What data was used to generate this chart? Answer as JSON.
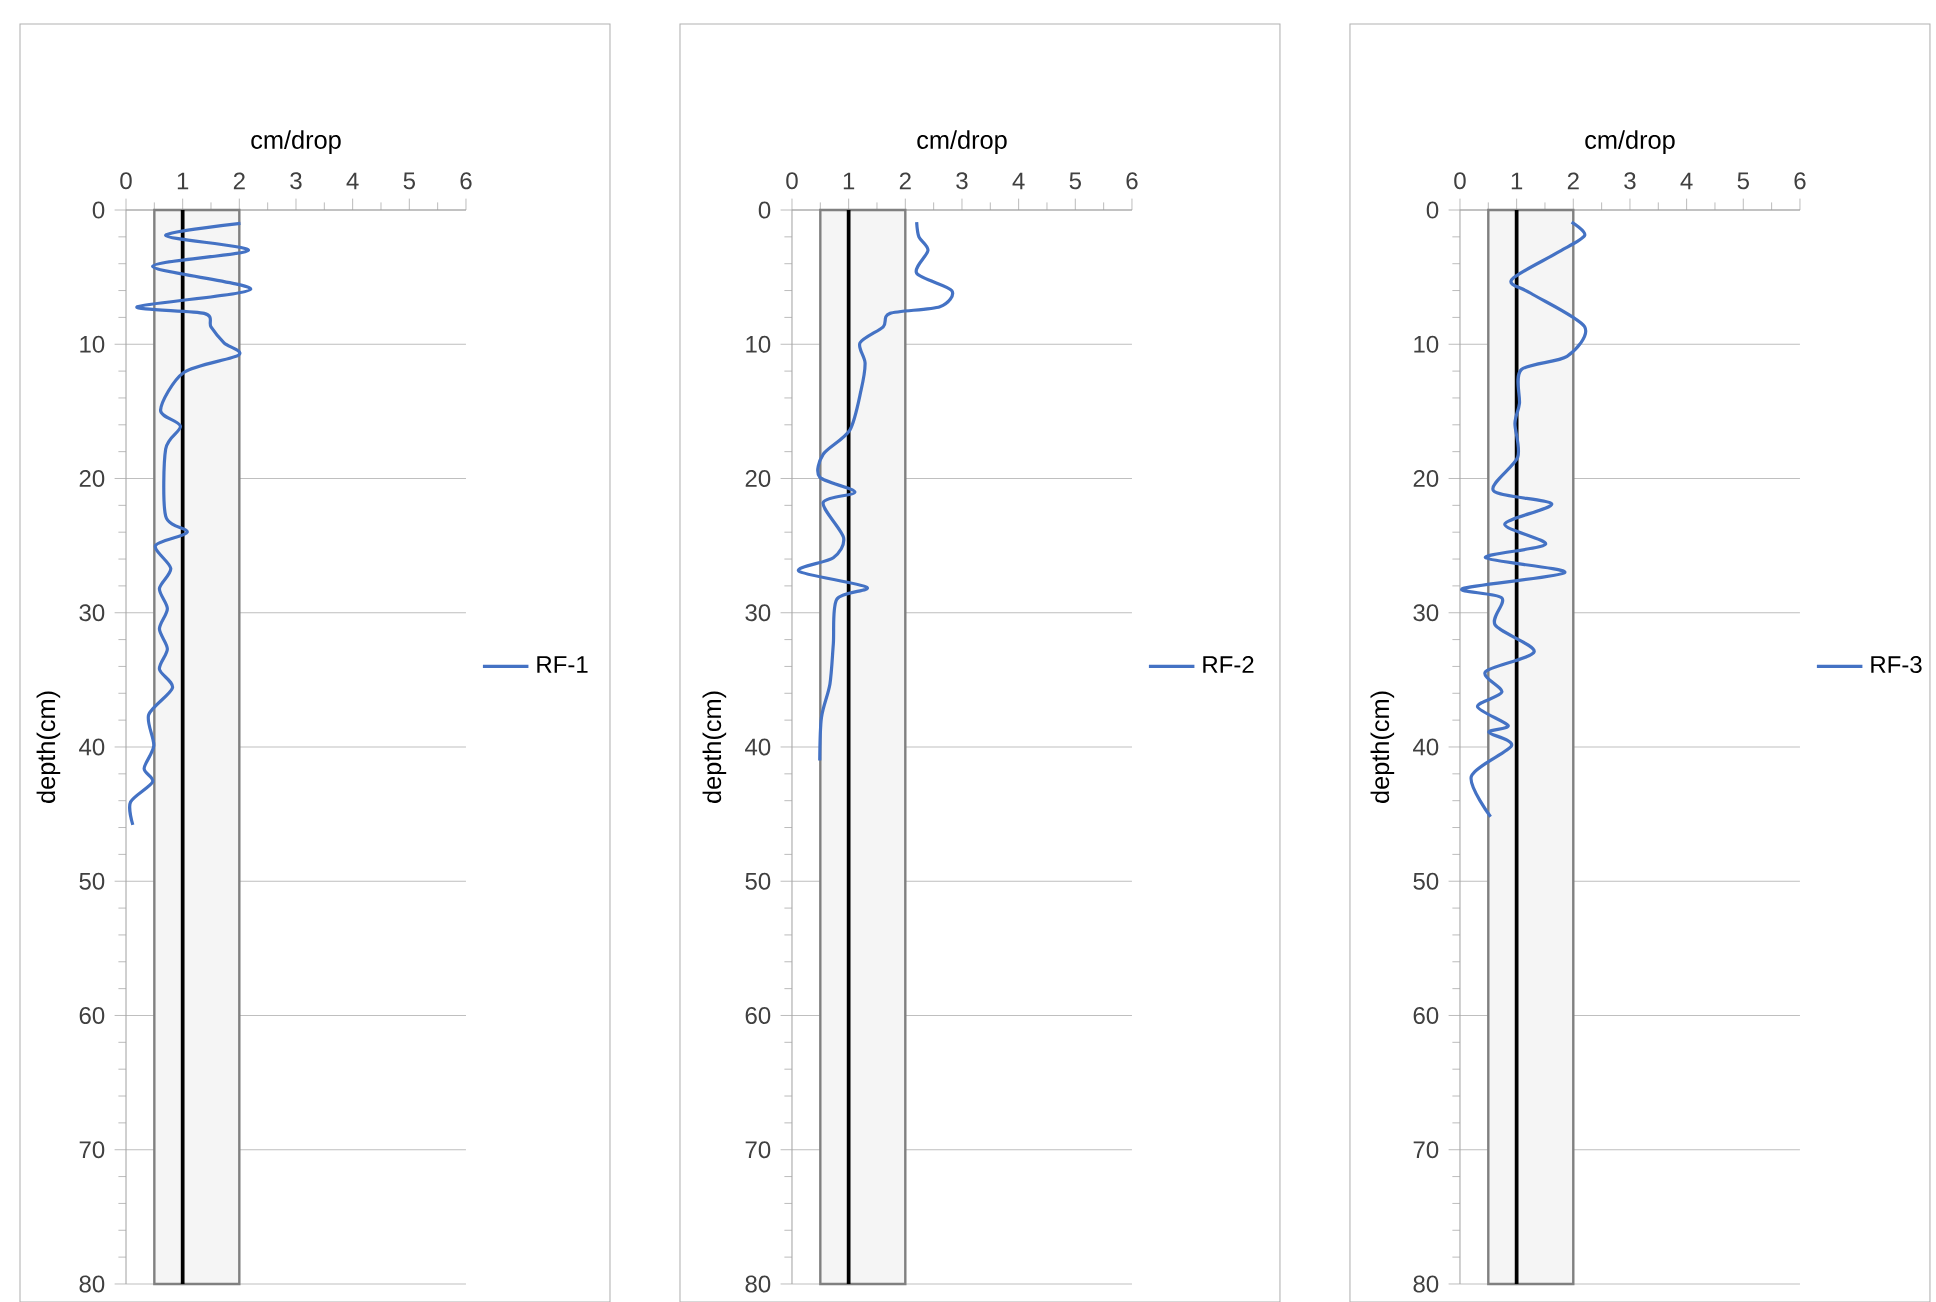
{
  "chart_data": [
    {
      "type": "line",
      "xlabel": "cm/drop",
      "ylabel": "depth(cm)",
      "xlim": [
        0,
        6
      ],
      "xticks": [
        0,
        1,
        2,
        3,
        4,
        5,
        6
      ],
      "ylim": [
        80,
        0
      ],
      "yticks": [
        0,
        10,
        20,
        30,
        40,
        50,
        60,
        70,
        80
      ],
      "grid": "y",
      "legend": "right",
      "bands": [
        {
          "axis": "x",
          "from": 0.5,
          "to": 2,
          "color": "#808080"
        }
      ],
      "ref_lines": [
        {
          "axis": "x",
          "value": 1,
          "color": "#000000"
        }
      ],
      "series": [
        {
          "name": "RF-1",
          "color": "#4472c4",
          "x": [
            2.02,
            0.7,
            2.16,
            0.47,
            2.2,
            0.2,
            1.38,
            1.5,
            1.73,
            1.99,
            1.02,
            0.61,
            0.96,
            0.7,
            0.7,
            1.08,
            0.52,
            0.79,
            0.59,
            0.73,
            0.59,
            0.73,
            0.59,
            0.82,
            0.4,
            0.49,
            0.32,
            0.47,
            0.08,
            0.12
          ],
          "values": [
            1,
            1.9,
            3,
            4.2,
            5.9,
            7.2,
            7.7,
            8.7,
            9.9,
            10.8,
            12.1,
            14.9,
            16.1,
            17.8,
            22.8,
            24,
            25,
            26.7,
            28.2,
            29.7,
            31.2,
            32.7,
            34.2,
            35.6,
            37.6,
            39.9,
            41.6,
            42.6,
            44.1,
            45.8
          ]
        }
      ]
    },
    {
      "type": "line",
      "xlabel": "cm/drop",
      "ylabel": "depth(cm)",
      "xlim": [
        0,
        6
      ],
      "xticks": [
        0,
        1,
        2,
        3,
        4,
        5,
        6
      ],
      "ylim": [
        80,
        0
      ],
      "yticks": [
        0,
        10,
        20,
        30,
        40,
        50,
        60,
        70,
        80
      ],
      "grid": "y",
      "legend": "right",
      "bands": [
        {
          "axis": "x",
          "from": 0.5,
          "to": 2,
          "color": "#808080"
        }
      ],
      "ref_lines": [
        {
          "axis": "x",
          "value": 1,
          "color": "#000000"
        }
      ],
      "series": [
        {
          "name": "RF-2",
          "color": "#4472c4",
          "x": [
            2.2,
            2.24,
            2.4,
            2.2,
            2.82,
            2.61,
            1.73,
            1.61,
            1.2,
            1.29,
            1.22,
            1.02,
            0.55,
            0.49,
            1.11,
            0.55,
            0.91,
            0.73,
            0.12,
            1.32,
            0.79,
            0.73,
            0.67,
            0.52,
            0.49
          ],
          "values": [
            0.9,
            2,
            3,
            4.7,
            6,
            7.2,
            7.7,
            8.7,
            9.9,
            11.4,
            13.4,
            16.4,
            18.2,
            19.9,
            21,
            21.8,
            24.4,
            25.9,
            26.9,
            28.1,
            29,
            32.3,
            35.3,
            37.8,
            41
          ]
        }
      ]
    },
    {
      "type": "line",
      "xlabel": "cm/drop",
      "ylabel": "depth(cm)",
      "xlim": [
        0,
        6
      ],
      "xticks": [
        0,
        1,
        2,
        3,
        4,
        5,
        6
      ],
      "ylim": [
        80,
        0
      ],
      "yticks": [
        0,
        10,
        20,
        30,
        40,
        50,
        60,
        70,
        80
      ],
      "grid": "y",
      "legend": "right",
      "bands": [
        {
          "axis": "x",
          "from": 0.5,
          "to": 2,
          "color": "#808080"
        }
      ],
      "ref_lines": [
        {
          "axis": "x",
          "value": 1,
          "color": "#000000"
        }
      ],
      "series": [
        {
          "name": "RF-3",
          "color": "#4472c4",
          "x": [
            1.97,
            2.2,
            1.71,
            0.91,
            1.25,
            2.2,
            1.89,
            1.08,
            1.05,
            0.97,
            1.02,
            0.59,
            1.62,
            0.79,
            1.51,
            0.45,
            1.85,
            0.05,
            0.74,
            0.62,
            1.31,
            0.45,
            0.74,
            0.31,
            0.85,
            0.51,
            0.91,
            0.2,
            0.54
          ],
          "values": [
            0.9,
            1.9,
            3.2,
            5.2,
            6.2,
            8.7,
            10.9,
            11.9,
            14.4,
            15.9,
            18.4,
            20.9,
            21.9,
            23.4,
            24.9,
            25.9,
            27,
            28.2,
            28.9,
            30.9,
            32.9,
            34.4,
            35.9,
            37,
            38.4,
            38.9,
            39.9,
            42.2,
            45.2
          ]
        }
      ]
    }
  ]
}
